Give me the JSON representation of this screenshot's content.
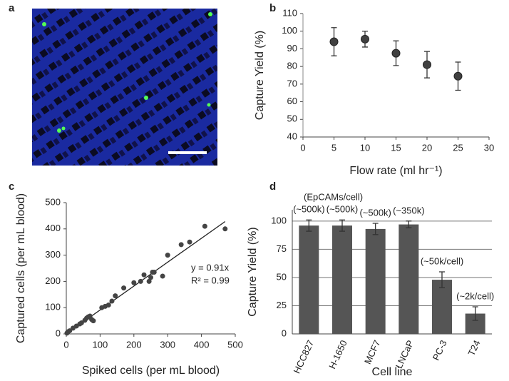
{
  "panel_labels": [
    "a",
    "b",
    "c",
    "d"
  ],
  "chart_data": [
    {
      "type": "errorscatter",
      "xlabel": "Flow rate (ml hr⁻¹)",
      "ylabel": "Capture Yield (%)",
      "x": [
        5,
        10,
        15,
        20,
        25
      ],
      "values": [
        94,
        95.5,
        87.5,
        81,
        74.5
      ],
      "errors": [
        8,
        4.5,
        7,
        7.5,
        8
      ],
      "color": "#404040",
      "xlim": [
        0,
        30
      ],
      "xticks": [
        0,
        5,
        10,
        15,
        20,
        25,
        30
      ],
      "ylim": [
        40,
        110
      ],
      "yticks": [
        40,
        50,
        60,
        70,
        80,
        90,
        100,
        110
      ],
      "grid": false
    },
    {
      "type": "scatter",
      "xlabel": "Spiked cells (per mL blood)",
      "ylabel": "Captured cells (per mL blood)",
      "x": [
        2,
        5,
        10,
        20,
        30,
        40,
        45,
        55,
        60,
        65,
        70,
        75,
        80,
        105,
        115,
        125,
        135,
        145,
        170,
        200,
        220,
        230,
        245,
        250,
        255,
        260,
        285,
        300,
        340,
        365,
        410,
        470
      ],
      "values": [
        3,
        8,
        12,
        22,
        30,
        38,
        42,
        52,
        60,
        65,
        68,
        55,
        50,
        100,
        105,
        110,
        125,
        145,
        175,
        195,
        200,
        225,
        200,
        215,
        235,
        235,
        220,
        300,
        340,
        350,
        410,
        400
      ],
      "trendline": {
        "x": [
          0,
          470
        ],
        "y": [
          0,
          428
        ]
      },
      "annotations": [
        "y = 0.91x",
        "R² = 0.99"
      ],
      "color": "#444444",
      "xlim": [
        0,
        500
      ],
      "xticks": [
        0,
        100,
        200,
        300,
        400,
        500
      ],
      "ylim": [
        0,
        500
      ],
      "yticks": [
        0,
        100,
        200,
        300,
        400,
        500
      ],
      "grid": false
    },
    {
      "type": "bar",
      "xlabel": "Cell line",
      "ylabel": "Capture Yield (%)",
      "header": "(EpCAMs/cell)",
      "categories": [
        "HCC827",
        "H-1650",
        "MCF7",
        "LNCaP",
        "PC-3",
        "T24"
      ],
      "values": [
        96,
        96,
        93,
        97,
        48,
        18
      ],
      "errors": [
        5,
        5,
        5,
        3,
        7,
        6
      ],
      "annotations": [
        "(~500k)",
        "(~500k)",
        "(~500k)",
        "(~350k)",
        "(~50k/cell)",
        "(~2k/cell)"
      ],
      "color": "#555555",
      "ylim": [
        0,
        110
      ],
      "yticks": [
        0,
        25,
        50,
        75,
        100
      ],
      "grid": true
    }
  ]
}
